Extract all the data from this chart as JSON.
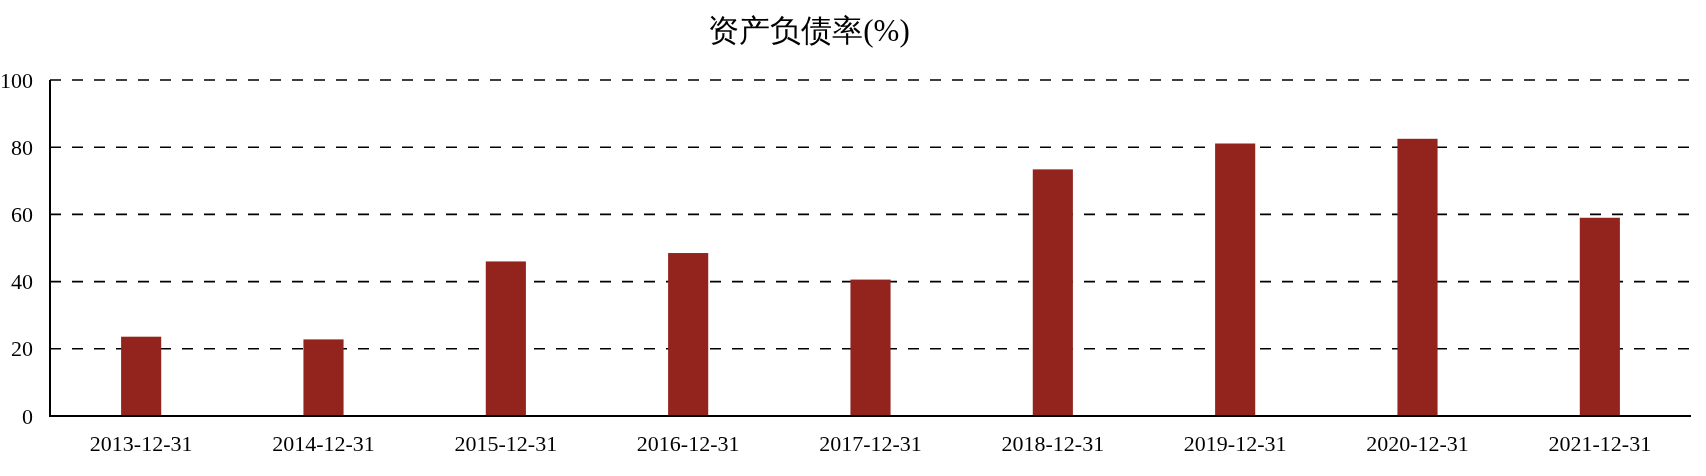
{
  "chart_data": {
    "type": "bar",
    "title": "资产负债率(%)",
    "categories": [
      "2013-12-31",
      "2014-12-31",
      "2015-12-31",
      "2016-12-31",
      "2017-12-31",
      "2018-12-31",
      "2019-12-31",
      "2020-12-31",
      "2021-12-31"
    ],
    "values": [
      23.6,
      22.8,
      46.0,
      48.5,
      40.6,
      73.4,
      81.1,
      82.5,
      59.0
    ],
    "color": "#93231d",
    "ylim": [
      0,
      100
    ],
    "yticks": [
      0,
      20,
      40,
      60,
      80,
      100
    ],
    "grid": "y"
  }
}
